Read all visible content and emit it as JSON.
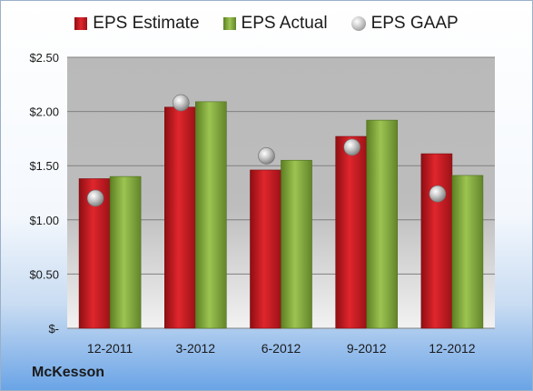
{
  "chart_data": {
    "type": "bar",
    "categories": [
      "12-2011",
      "3-2012",
      "6-2012",
      "9-2012",
      "12-2012"
    ],
    "series": [
      {
        "name": "EPS Estimate",
        "kind": "bar",
        "color": "#c0191f",
        "values": [
          1.38,
          2.04,
          1.46,
          1.77,
          1.61
        ]
      },
      {
        "name": "EPS Actual",
        "kind": "bar",
        "color": "#7ea53a",
        "values": [
          1.4,
          2.09,
          1.55,
          1.92,
          1.41
        ]
      },
      {
        "name": "EPS GAAP",
        "kind": "scatter",
        "color": "#a6a6a6",
        "values": [
          1.2,
          2.08,
          1.59,
          1.67,
          1.24
        ]
      }
    ],
    "ylim": [
      0,
      2.5
    ],
    "yticks": [
      0,
      0.5,
      1.0,
      1.5,
      2.0,
      2.5
    ],
    "ytick_labels": [
      "$-",
      "$0.50",
      "$1.00",
      "$1.50",
      "$2.00",
      "$2.50"
    ],
    "grid": true,
    "legend_position": "top"
  },
  "footer": {
    "company": "McKesson"
  }
}
